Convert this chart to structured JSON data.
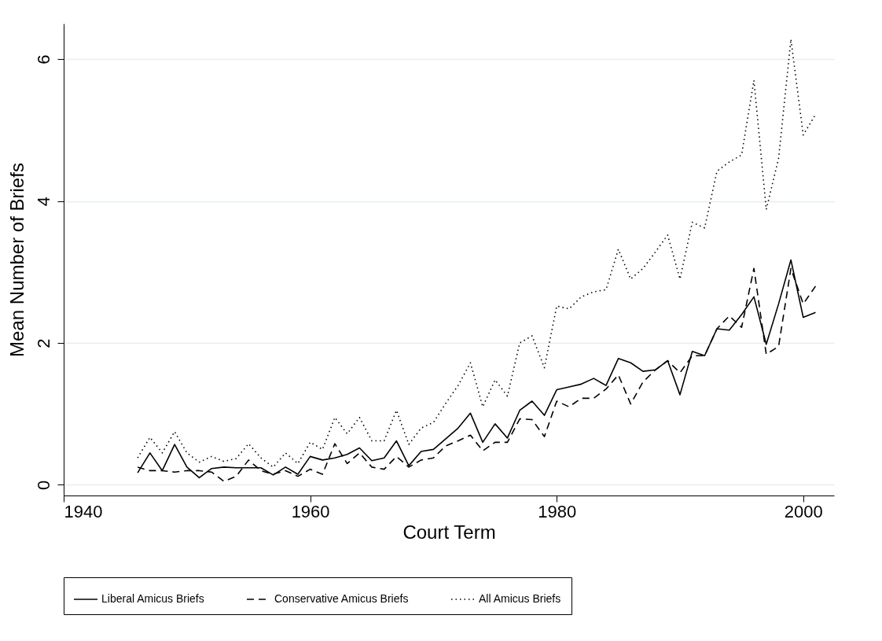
{
  "chart_data": {
    "type": "line",
    "xlabel": "Court Term",
    "ylabel": "Mean Number of Briefs",
    "x": [
      1946,
      1947,
      1948,
      1949,
      1950,
      1951,
      1952,
      1953,
      1954,
      1955,
      1956,
      1957,
      1958,
      1959,
      1960,
      1961,
      1962,
      1963,
      1964,
      1965,
      1966,
      1967,
      1968,
      1969,
      1970,
      1971,
      1972,
      1973,
      1974,
      1975,
      1976,
      1977,
      1978,
      1979,
      1980,
      1981,
      1982,
      1983,
      1984,
      1985,
      1986,
      1987,
      1988,
      1989,
      1990,
      1991,
      1992,
      1993,
      1994,
      1995,
      1996,
      1997,
      1998,
      1999,
      2000,
      2001
    ],
    "series": [
      {
        "name": "Liberal Amicus Briefs",
        "color": "#000000",
        "line_style": "solid",
        "values": [
          0.17,
          0.45,
          0.2,
          0.57,
          0.25,
          0.1,
          0.23,
          0.25,
          0.24,
          0.24,
          0.24,
          0.14,
          0.25,
          0.15,
          0.4,
          0.35,
          0.38,
          0.43,
          0.52,
          0.34,
          0.38,
          0.62,
          0.27,
          0.47,
          0.5,
          0.65,
          0.8,
          1.01,
          0.6,
          0.86,
          0.66,
          1.05,
          1.18,
          0.98,
          1.34,
          1.38,
          1.42,
          1.5,
          1.4,
          1.78,
          1.72,
          1.6,
          1.62,
          1.75,
          1.27,
          1.88,
          1.82,
          2.2,
          2.18,
          2.4,
          2.65,
          1.98,
          2.55,
          3.17,
          2.36,
          2.43
        ]
      },
      {
        "name": "Conservative Amicus Briefs",
        "color": "#000000",
        "line_style": "dashed",
        "values": [
          0.25,
          0.2,
          0.2,
          0.18,
          0.2,
          0.2,
          0.18,
          0.05,
          0.12,
          0.35,
          0.2,
          0.15,
          0.2,
          0.12,
          0.22,
          0.15,
          0.58,
          0.3,
          0.45,
          0.25,
          0.22,
          0.4,
          0.25,
          0.35,
          0.38,
          0.55,
          0.62,
          0.7,
          0.48,
          0.6,
          0.6,
          0.93,
          0.92,
          0.68,
          1.18,
          1.1,
          1.22,
          1.22,
          1.35,
          1.55,
          1.14,
          1.45,
          1.62,
          1.75,
          1.58,
          1.82,
          1.82,
          2.2,
          2.38,
          2.22,
          3.05,
          1.84,
          1.95,
          3.05,
          2.55,
          2.8
        ]
      },
      {
        "name": "All Amicus Briefs",
        "color": "#000000",
        "line_style": "dotted",
        "values": [
          0.38,
          0.67,
          0.45,
          0.75,
          0.45,
          0.32,
          0.4,
          0.33,
          0.37,
          0.58,
          0.38,
          0.25,
          0.45,
          0.3,
          0.6,
          0.5,
          0.95,
          0.72,
          0.95,
          0.62,
          0.62,
          1.05,
          0.57,
          0.8,
          0.88,
          1.15,
          1.4,
          1.72,
          1.1,
          1.48,
          1.25,
          2.0,
          2.1,
          1.65,
          2.52,
          2.48,
          2.65,
          2.72,
          2.75,
          3.32,
          2.9,
          3.05,
          3.28,
          3.52,
          2.9,
          3.7,
          3.62,
          4.42,
          4.55,
          4.65,
          5.7,
          3.88,
          4.6,
          6.28,
          4.93,
          5.22
        ]
      }
    ],
    "xlim": [
      1940,
      2002.5
    ],
    "xticks": [
      1940,
      1960,
      1980,
      2000
    ],
    "ylim": [
      -0.15,
      6.5
    ],
    "yticks": [
      0,
      2,
      4,
      6
    ],
    "grid": "y",
    "legend": "bottom",
    "marker": "none"
  }
}
